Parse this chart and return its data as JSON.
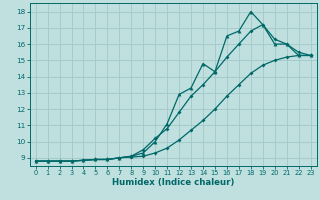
{
  "xlabel": "Humidex (Indice chaleur)",
  "ylabel": "",
  "bg_color": "#c0e0e0",
  "grid_color": "#a0c8c8",
  "line_color": "#006868",
  "xlim": [
    -0.5,
    23.5
  ],
  "ylim": [
    8.5,
    18.5
  ],
  "xticks": [
    0,
    1,
    2,
    3,
    4,
    5,
    6,
    7,
    8,
    9,
    10,
    11,
    12,
    13,
    14,
    15,
    16,
    17,
    18,
    19,
    20,
    21,
    22,
    23
  ],
  "yticks": [
    9,
    10,
    11,
    12,
    13,
    14,
    15,
    16,
    17,
    18
  ],
  "line1_x": [
    0,
    1,
    2,
    3,
    4,
    5,
    6,
    7,
    8,
    9,
    10,
    11,
    12,
    13,
    14,
    15,
    16,
    17,
    18,
    19,
    20,
    21,
    22,
    23
  ],
  "line1_y": [
    8.8,
    8.8,
    8.8,
    8.8,
    8.85,
    8.9,
    8.9,
    9.0,
    9.05,
    9.1,
    9.3,
    9.6,
    10.1,
    10.7,
    11.3,
    12.0,
    12.8,
    13.5,
    14.2,
    14.7,
    15.0,
    15.2,
    15.3,
    15.3
  ],
  "line2_x": [
    0,
    1,
    2,
    3,
    4,
    5,
    6,
    7,
    8,
    9,
    10,
    11,
    12,
    13,
    14,
    15,
    16,
    17,
    18,
    19,
    20,
    21,
    22,
    23
  ],
  "line2_y": [
    8.8,
    8.8,
    8.8,
    8.8,
    8.85,
    8.9,
    8.9,
    9.0,
    9.1,
    9.5,
    10.2,
    10.8,
    11.8,
    12.8,
    13.5,
    14.3,
    15.2,
    16.0,
    16.8,
    17.2,
    16.3,
    16.0,
    15.5,
    15.3
  ],
  "line3_x": [
    0,
    1,
    2,
    3,
    4,
    5,
    6,
    7,
    8,
    9,
    10,
    11,
    12,
    13,
    14,
    15,
    16,
    17,
    18,
    19,
    20,
    21,
    22,
    23
  ],
  "line3_y": [
    8.8,
    8.8,
    8.8,
    8.8,
    8.85,
    8.9,
    8.9,
    9.0,
    9.1,
    9.3,
    10.0,
    11.1,
    12.9,
    13.3,
    14.8,
    14.3,
    16.5,
    16.8,
    18.0,
    17.2,
    16.0,
    16.0,
    15.3,
    15.3
  ],
  "marker1": "D",
  "marker2": "D",
  "marker3": "^"
}
